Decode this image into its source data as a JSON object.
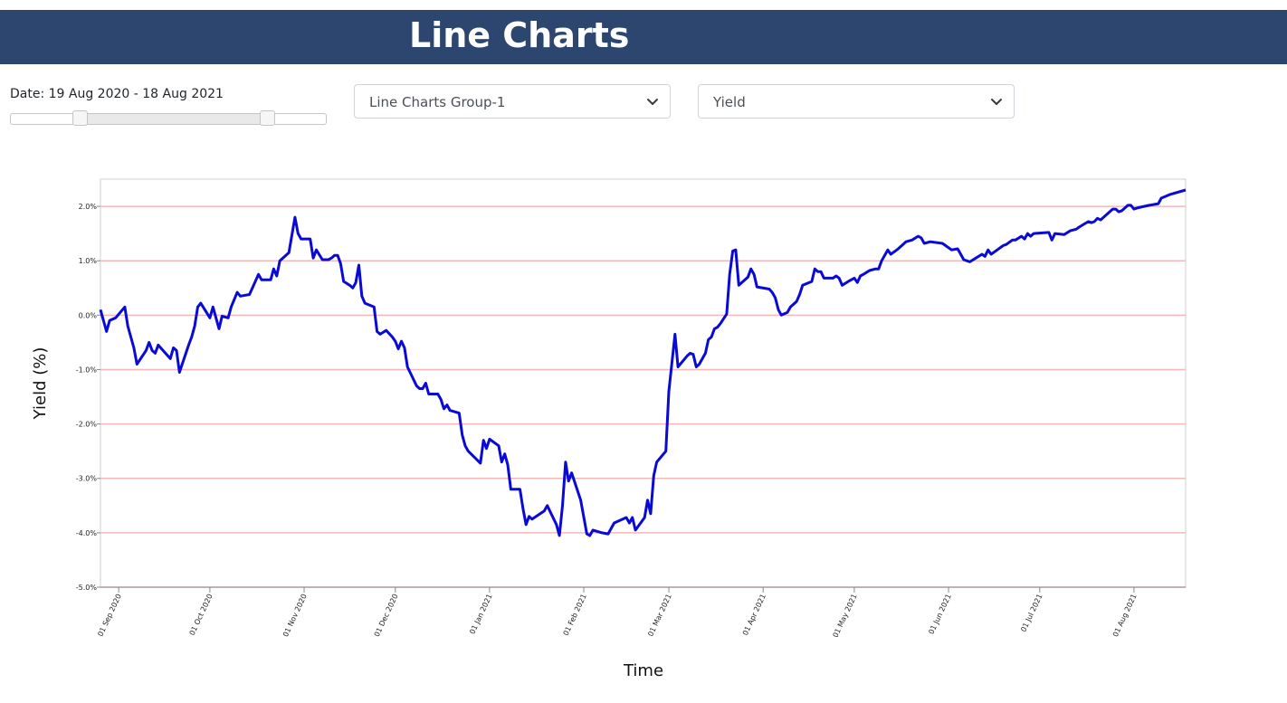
{
  "page_title": "Line Charts",
  "controls": {
    "date_label": "Date: 19 Aug 2020 - 18 Aug 2021",
    "slider": {
      "range_start_fraction": 0.22,
      "range_end_fraction": 0.815
    },
    "group_select": {
      "value": "Line Charts Group-1"
    },
    "metric_select": {
      "value": "Yield"
    }
  },
  "icons": {
    "select_arrow": "chevron-down-icon"
  },
  "colors": {
    "header_bg": "#2d4670",
    "line": "#0a0ad6",
    "gridline": "#f5b8b8"
  },
  "chart_data": {
    "type": "line",
    "xlabel": "Time",
    "ylabel": "Yield (%)",
    "ylim": [
      -5.0,
      2.5
    ],
    "xlim": [
      "2020-08-26",
      "2021-08-18"
    ],
    "grid": "horizontal",
    "y_ticks": [
      {
        "value": 2,
        "label": "2.0%"
      },
      {
        "value": 1,
        "label": "1.0%"
      },
      {
        "value": 0,
        "label": "0.0%"
      },
      {
        "value": -1,
        "label": "-1.0%"
      },
      {
        "value": -2,
        "label": "-2.0%"
      },
      {
        "value": -3,
        "label": "-3.0%"
      },
      {
        "value": -4,
        "label": "-4.0%"
      },
      {
        "value": -5,
        "label": "-5.0%"
      }
    ],
    "x_ticks": [
      {
        "date": "2020-09-01",
        "label": "01 Sep 2020"
      },
      {
        "date": "2020-10-01",
        "label": "01 Oct 2020"
      },
      {
        "date": "2020-11-01",
        "label": "01 Nov 2020"
      },
      {
        "date": "2020-12-01",
        "label": "01 Dec 2020"
      },
      {
        "date": "2021-01-01",
        "label": "01 Jan 2021"
      },
      {
        "date": "2021-02-01",
        "label": "01 Feb 2021"
      },
      {
        "date": "2021-03-01",
        "label": "01 Mar 2021"
      },
      {
        "date": "2021-04-01",
        "label": "01 Apr 2021"
      },
      {
        "date": "2021-05-01",
        "label": "01 May 2021"
      },
      {
        "date": "2021-06-01",
        "label": "01 Jun 2021"
      },
      {
        "date": "2021-07-01",
        "label": "01 Jul 2021"
      },
      {
        "date": "2021-08-01",
        "label": "01 Aug 2021"
      }
    ],
    "series": [
      {
        "points": [
          [
            "2020-08-26",
            0.1
          ],
          [
            "2020-08-28",
            -0.3
          ],
          [
            "2020-08-29",
            -0.1
          ],
          [
            "2020-08-31",
            -0.05
          ],
          [
            "2020-09-03",
            0.15
          ],
          [
            "2020-09-04",
            -0.2
          ],
          [
            "2020-09-06",
            -0.6
          ],
          [
            "2020-09-07",
            -0.9
          ],
          [
            "2020-09-10",
            -0.65
          ],
          [
            "2020-09-11",
            -0.5
          ],
          [
            "2020-09-12",
            -0.65
          ],
          [
            "2020-09-13",
            -0.7
          ],
          [
            "2020-09-14",
            -0.55
          ],
          [
            "2020-09-18",
            -0.8
          ],
          [
            "2020-09-19",
            -0.6
          ],
          [
            "2020-09-20",
            -0.65
          ],
          [
            "2020-09-21",
            -1.05
          ],
          [
            "2020-09-24",
            -0.55
          ],
          [
            "2020-09-25",
            -0.4
          ],
          [
            "2020-09-26",
            -0.2
          ],
          [
            "2020-09-27",
            0.15
          ],
          [
            "2020-09-28",
            0.22
          ],
          [
            "2020-10-01",
            -0.05
          ],
          [
            "2020-10-02",
            0.15
          ],
          [
            "2020-10-04",
            -0.25
          ],
          [
            "2020-10-05",
            -0.02
          ],
          [
            "2020-10-07",
            -0.05
          ],
          [
            "2020-10-08",
            0.15
          ],
          [
            "2020-10-10",
            0.42
          ],
          [
            "2020-10-11",
            0.35
          ],
          [
            "2020-10-14",
            0.38
          ],
          [
            "2020-10-15",
            0.5
          ],
          [
            "2020-10-17",
            0.75
          ],
          [
            "2020-10-18",
            0.65
          ],
          [
            "2020-10-21",
            0.65
          ],
          [
            "2020-10-22",
            0.85
          ],
          [
            "2020-10-23",
            0.72
          ],
          [
            "2020-10-24",
            1.0
          ],
          [
            "2020-10-27",
            1.15
          ],
          [
            "2020-10-29",
            1.8
          ],
          [
            "2020-10-30",
            1.5
          ],
          [
            "2020-10-31",
            1.4
          ],
          [
            "2020-11-03",
            1.4
          ],
          [
            "2020-11-04",
            1.05
          ],
          [
            "2020-11-05",
            1.2
          ],
          [
            "2020-11-07",
            1.02
          ],
          [
            "2020-11-09",
            1.02
          ],
          [
            "2020-11-10",
            1.05
          ],
          [
            "2020-11-11",
            1.1
          ],
          [
            "2020-11-12",
            1.1
          ],
          [
            "2020-11-13",
            0.95
          ],
          [
            "2020-11-14",
            0.62
          ],
          [
            "2020-11-16",
            0.55
          ],
          [
            "2020-11-17",
            0.5
          ],
          [
            "2020-11-18",
            0.6
          ],
          [
            "2020-11-19",
            0.92
          ],
          [
            "2020-11-20",
            0.35
          ],
          [
            "2020-11-21",
            0.22
          ],
          [
            "2020-11-24",
            0.15
          ],
          [
            "2020-11-25",
            -0.3
          ],
          [
            "2020-11-26",
            -0.35
          ],
          [
            "2020-11-28",
            -0.28
          ],
          [
            "2020-11-30",
            -0.4
          ],
          [
            "2020-12-01",
            -0.48
          ],
          [
            "2020-12-02",
            -0.62
          ],
          [
            "2020-12-03",
            -0.48
          ],
          [
            "2020-12-04",
            -0.6
          ],
          [
            "2020-12-05",
            -0.95
          ],
          [
            "2020-12-08",
            -1.3
          ],
          [
            "2020-12-09",
            -1.35
          ],
          [
            "2020-12-10",
            -1.35
          ],
          [
            "2020-12-11",
            -1.25
          ],
          [
            "2020-12-12",
            -1.45
          ],
          [
            "2020-12-15",
            -1.45
          ],
          [
            "2020-12-16",
            -1.55
          ],
          [
            "2020-12-17",
            -1.72
          ],
          [
            "2020-12-18",
            -1.65
          ],
          [
            "2020-12-19",
            -1.75
          ],
          [
            "2020-12-22",
            -1.8
          ],
          [
            "2020-12-23",
            -2.2
          ],
          [
            "2020-12-24",
            -2.4
          ],
          [
            "2020-12-25",
            -2.5
          ],
          [
            "2020-12-29",
            -2.72
          ],
          [
            "2020-12-30",
            -2.3
          ],
          [
            "2020-12-31",
            -2.45
          ],
          [
            "2021-01-01",
            -2.28
          ],
          [
            "2021-01-04",
            -2.4
          ],
          [
            "2021-01-05",
            -2.7
          ],
          [
            "2021-01-06",
            -2.55
          ],
          [
            "2021-01-07",
            -2.75
          ],
          [
            "2021-01-08",
            -3.2
          ],
          [
            "2021-01-11",
            -3.2
          ],
          [
            "2021-01-12",
            -3.55
          ],
          [
            "2021-01-13",
            -3.85
          ],
          [
            "2021-01-14",
            -3.7
          ],
          [
            "2021-01-15",
            -3.75
          ],
          [
            "2021-01-19",
            -3.6
          ],
          [
            "2021-01-20",
            -3.5
          ],
          [
            "2021-01-21",
            -3.62
          ],
          [
            "2021-01-23",
            -3.85
          ],
          [
            "2021-01-24",
            -4.05
          ],
          [
            "2021-01-25",
            -3.5
          ],
          [
            "2021-01-26",
            -2.7
          ],
          [
            "2021-01-27",
            -3.05
          ],
          [
            "2021-01-28",
            -2.9
          ],
          [
            "2021-01-31",
            -3.4
          ],
          [
            "2021-02-02",
            -4.02
          ],
          [
            "2021-02-03",
            -4.05
          ],
          [
            "2021-02-04",
            -3.95
          ],
          [
            "2021-02-07",
            -4.0
          ],
          [
            "2021-02-09",
            -4.02
          ],
          [
            "2021-02-11",
            -3.82
          ],
          [
            "2021-02-15",
            -3.72
          ],
          [
            "2021-02-16",
            -3.82
          ],
          [
            "2021-02-17",
            -3.72
          ],
          [
            "2021-02-18",
            -3.95
          ],
          [
            "2021-02-21",
            -3.72
          ],
          [
            "2021-02-22",
            -3.4
          ],
          [
            "2021-02-23",
            -3.65
          ],
          [
            "2021-02-24",
            -2.95
          ],
          [
            "2021-02-25",
            -2.7
          ],
          [
            "2021-02-28",
            -2.5
          ],
          [
            "2021-03-01",
            -1.4
          ],
          [
            "2021-03-03",
            -0.35
          ],
          [
            "2021-03-04",
            -0.95
          ],
          [
            "2021-03-07",
            -0.75
          ],
          [
            "2021-03-08",
            -0.7
          ],
          [
            "2021-03-09",
            -0.72
          ],
          [
            "2021-03-10",
            -0.95
          ],
          [
            "2021-03-11",
            -0.9
          ],
          [
            "2021-03-13",
            -0.7
          ],
          [
            "2021-03-14",
            -0.45
          ],
          [
            "2021-03-15",
            -0.4
          ],
          [
            "2021-03-16",
            -0.25
          ],
          [
            "2021-03-17",
            -0.22
          ],
          [
            "2021-03-18",
            -0.15
          ],
          [
            "2021-03-20",
            0.02
          ],
          [
            "2021-03-21",
            0.75
          ],
          [
            "2021-03-22",
            1.18
          ],
          [
            "2021-03-23",
            1.2
          ],
          [
            "2021-03-24",
            0.55
          ],
          [
            "2021-03-27",
            0.7
          ],
          [
            "2021-03-28",
            0.85
          ],
          [
            "2021-03-29",
            0.75
          ],
          [
            "2021-03-30",
            0.52
          ],
          [
            "2021-04-03",
            0.48
          ],
          [
            "2021-04-04",
            0.42
          ],
          [
            "2021-04-05",
            0.32
          ],
          [
            "2021-04-06",
            0.1
          ],
          [
            "2021-04-07",
            0.0
          ],
          [
            "2021-04-09",
            0.05
          ],
          [
            "2021-04-10",
            0.15
          ],
          [
            "2021-04-12",
            0.25
          ],
          [
            "2021-04-13",
            0.38
          ],
          [
            "2021-04-14",
            0.55
          ],
          [
            "2021-04-17",
            0.62
          ],
          [
            "2021-04-18",
            0.85
          ],
          [
            "2021-04-19",
            0.8
          ],
          [
            "2021-04-20",
            0.8
          ],
          [
            "2021-04-21",
            0.68
          ],
          [
            "2021-04-24",
            0.68
          ],
          [
            "2021-04-25",
            0.72
          ],
          [
            "2021-04-26",
            0.68
          ],
          [
            "2021-04-27",
            0.55
          ],
          [
            "2021-04-29",
            0.62
          ],
          [
            "2021-05-01",
            0.68
          ],
          [
            "2021-05-02",
            0.6
          ],
          [
            "2021-05-03",
            0.72
          ],
          [
            "2021-05-04",
            0.75
          ],
          [
            "2021-05-06",
            0.82
          ],
          [
            "2021-05-08",
            0.85
          ],
          [
            "2021-05-09",
            0.85
          ],
          [
            "2021-05-10",
            1.0
          ],
          [
            "2021-05-12",
            1.2
          ],
          [
            "2021-05-13",
            1.12
          ],
          [
            "2021-05-15",
            1.2
          ],
          [
            "2021-05-17",
            1.3
          ],
          [
            "2021-05-18",
            1.35
          ],
          [
            "2021-05-20",
            1.38
          ],
          [
            "2021-05-22",
            1.45
          ],
          [
            "2021-05-23",
            1.42
          ],
          [
            "2021-05-24",
            1.32
          ],
          [
            "2021-05-26",
            1.35
          ],
          [
            "2021-05-30",
            1.32
          ],
          [
            "2021-05-31",
            1.28
          ],
          [
            "2021-06-02",
            1.2
          ],
          [
            "2021-06-04",
            1.22
          ],
          [
            "2021-06-05",
            1.12
          ],
          [
            "2021-06-06",
            1.02
          ],
          [
            "2021-06-07",
            1.0
          ],
          [
            "2021-06-08",
            0.98
          ],
          [
            "2021-06-10",
            1.05
          ],
          [
            "2021-06-12",
            1.12
          ],
          [
            "2021-06-13",
            1.08
          ],
          [
            "2021-06-14",
            1.2
          ],
          [
            "2021-06-15",
            1.12
          ],
          [
            "2021-06-17",
            1.2
          ],
          [
            "2021-06-19",
            1.28
          ],
          [
            "2021-06-20",
            1.3
          ],
          [
            "2021-06-22",
            1.38
          ],
          [
            "2021-06-23",
            1.38
          ],
          [
            "2021-06-25",
            1.45
          ],
          [
            "2021-06-26",
            1.4
          ],
          [
            "2021-06-27",
            1.5
          ],
          [
            "2021-06-28",
            1.45
          ],
          [
            "2021-06-29",
            1.5
          ],
          [
            "2021-07-04",
            1.52
          ],
          [
            "2021-07-05",
            1.38
          ],
          [
            "2021-07-06",
            1.5
          ],
          [
            "2021-07-09",
            1.48
          ],
          [
            "2021-07-11",
            1.55
          ],
          [
            "2021-07-13",
            1.58
          ],
          [
            "2021-07-14",
            1.62
          ],
          [
            "2021-07-17",
            1.72
          ],
          [
            "2021-07-18",
            1.7
          ],
          [
            "2021-07-19",
            1.72
          ],
          [
            "2021-07-20",
            1.78
          ],
          [
            "2021-07-21",
            1.75
          ],
          [
            "2021-07-23",
            1.85
          ],
          [
            "2021-07-25",
            1.95
          ],
          [
            "2021-07-26",
            1.95
          ],
          [
            "2021-07-27",
            1.9
          ],
          [
            "2021-07-28",
            1.92
          ],
          [
            "2021-07-30",
            2.02
          ],
          [
            "2021-07-31",
            2.02
          ],
          [
            "2021-08-01",
            1.95
          ],
          [
            "2021-08-02",
            1.97
          ],
          [
            "2021-08-06",
            2.02
          ],
          [
            "2021-08-09",
            2.05
          ],
          [
            "2021-08-10",
            2.15
          ],
          [
            "2021-08-13",
            2.22
          ],
          [
            "2021-08-18",
            2.3
          ]
        ]
      }
    ]
  }
}
